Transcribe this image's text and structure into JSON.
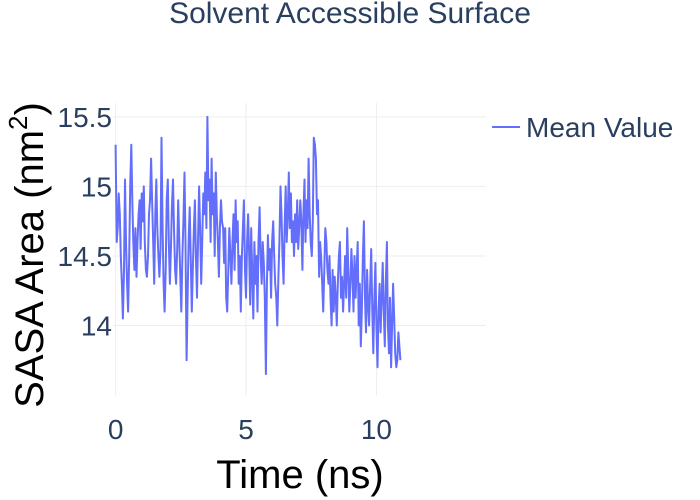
{
  "chart_data": {
    "type": "line",
    "title": "Solvent Accessible Surface",
    "xlabel": "Time (ns)",
    "ylabel_main": "SASA Area (nm",
    "ylabel_sup": "2",
    "ylabel_close": ")",
    "xlim": [
      -0.1,
      14.2
    ],
    "ylim": [
      13.5,
      15.6
    ],
    "x_ticks": [
      0,
      5,
      10
    ],
    "x_tick_labels": [
      "0",
      "5",
      "10"
    ],
    "y_ticks": [
      14,
      14.5,
      15,
      15.5
    ],
    "y_tick_labels": [
      "14",
      "14.5",
      "15",
      "15.5"
    ],
    "grid": true,
    "legend_position": "top-right",
    "series": [
      {
        "name": "Mean Value",
        "color": "#636efa",
        "x_start": 0,
        "x_step": 0.04,
        "values": [
          15.3,
          14.6,
          14.7,
          14.95,
          14.8,
          14.5,
          14.3,
          14.05,
          14.4,
          15.05,
          14.6,
          14.3,
          14.1,
          14.5,
          15.0,
          15.3,
          14.9,
          14.6,
          14.4,
          14.7,
          14.35,
          14.6,
          14.8,
          14.9,
          14.55,
          14.95,
          14.75,
          15.0,
          14.6,
          14.4,
          14.35,
          14.5,
          14.8,
          14.9,
          15.2,
          14.9,
          14.6,
          14.3,
          14.8,
          15.05,
          14.7,
          14.5,
          14.35,
          14.55,
          15.35,
          14.7,
          14.3,
          14.1,
          14.4,
          14.9,
          15.05,
          14.6,
          14.3,
          14.55,
          14.85,
          15.05,
          14.7,
          14.4,
          14.3,
          14.55,
          14.9,
          14.6,
          14.35,
          14.1,
          14.5,
          14.75,
          15.1,
          14.6,
          13.75,
          14.2,
          14.6,
          14.85,
          14.5,
          14.1,
          14.4,
          14.7,
          14.9,
          14.5,
          14.2,
          14.6,
          15.0,
          14.7,
          14.3,
          14.6,
          14.95,
          14.8,
          15.1,
          14.7,
          15.5,
          14.9,
          15.05,
          14.6,
          15.2,
          14.8,
          14.95,
          14.5,
          15.1,
          14.8,
          14.6,
          14.35,
          14.7,
          14.9,
          14.75,
          14.7,
          14.45,
          14.7,
          14.2,
          14.1,
          14.4,
          14.7,
          14.5,
          14.3,
          14.6,
          14.8,
          14.4,
          14.9,
          14.6,
          14.75,
          14.3,
          14.5,
          14.1,
          14.5,
          14.7,
          14.9,
          14.4,
          14.2,
          14.6,
          14.8,
          14.5,
          14.15,
          14.7,
          14.35,
          14.05,
          14.6,
          14.3,
          14.5,
          14.1,
          14.6,
          14.85,
          14.5,
          14.3,
          14.6,
          14.45,
          14.2,
          13.65,
          14.3,
          14.65,
          14.4,
          14.55,
          14.2,
          14.6,
          14.75,
          14.5,
          14.3,
          14.2,
          14.0,
          14.35,
          14.6,
          15.0,
          14.8,
          14.5,
          14.3,
          14.7,
          15.0,
          14.6,
          14.8,
          15.1,
          14.7,
          14.95,
          14.6,
          14.75,
          14.5,
          14.8,
          14.6,
          14.9,
          14.55,
          14.7,
          14.9,
          14.75,
          14.4,
          14.8,
          15.05,
          14.6,
          14.9,
          14.7,
          15.2,
          14.8,
          14.6,
          14.5,
          14.75,
          15.35,
          15.3,
          15.2,
          14.8,
          14.9,
          14.35,
          14.6,
          14.5,
          14.3,
          14.1,
          14.4,
          14.7,
          14.6,
          14.4,
          14.3,
          14.5,
          14.2,
          14.0,
          14.4,
          14.1,
          14.35,
          14.2,
          14.0,
          14.3,
          14.5,
          14.6,
          14.2,
          14.35,
          14.1,
          14.3,
          14.5,
          14.2,
          14.7,
          14.4,
          14.1,
          14.3,
          14.55,
          14.35,
          14.1,
          14.5,
          14.2,
          14.4,
          14.6,
          14.0,
          14.3,
          13.85,
          14.1,
          14.5,
          14.75,
          14.2,
          13.95,
          14.4,
          14.15,
          14.0,
          14.3,
          14.55,
          14.1,
          13.8,
          14.2,
          14.45,
          14.0,
          13.7,
          14.1,
          14.3,
          13.95,
          14.2,
          14.45,
          14.1,
          13.85,
          14.3,
          14.6,
          14.0,
          13.8,
          14.2,
          13.7,
          14.0,
          14.3,
          14.05,
          13.8,
          13.7,
          13.75,
          13.95,
          13.85,
          13.75
        ]
      }
    ]
  }
}
